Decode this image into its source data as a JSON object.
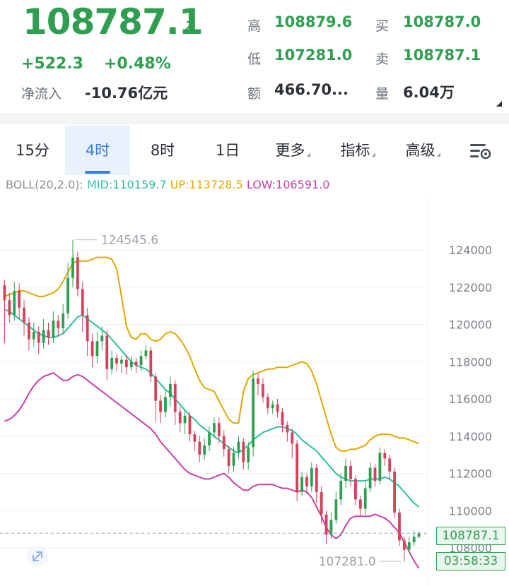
{
  "ticker": {
    "last_price": "108787.1",
    "change": "+522.3",
    "change_pct": "+0.48%",
    "net_flow_label": "净流入",
    "net_flow_value": "-10.76亿元"
  },
  "stats": {
    "high_label": "高",
    "high_value": "108879.6",
    "low_label": "低",
    "low_value": "107281.0",
    "amount_label": "额",
    "amount_value": "466.70...",
    "bid_label": "买",
    "bid_value": "108787.0",
    "ask_label": "卖",
    "ask_value": "108787.1",
    "volume_label": "量",
    "volume_value": "6.04万"
  },
  "tabs": [
    {
      "label": "15分"
    },
    {
      "label": "4时",
      "active": true
    },
    {
      "label": "8时"
    },
    {
      "label": "1日"
    },
    {
      "label": "更多"
    },
    {
      "label": "指标"
    },
    {
      "label": "高级"
    }
  ],
  "indicator": {
    "name": "BOLL(20,2.0):",
    "mid": "MID:110159.7",
    "up": "UP:113728.5",
    "low": "LOW:106591.0"
  },
  "colors": {
    "up_candle": "#2f9e50",
    "down_candle": "#d6405a",
    "mid_line": "#2bbfa0",
    "upper_band": "#e0a800",
    "lower_band": "#c93fa7",
    "active_tab": "#3b7de0"
  },
  "chart_data": {
    "type": "candlestick",
    "y_ticks": [
      "124000",
      "122000",
      "120000",
      "118000",
      "116000",
      "114000",
      "112000",
      "110000",
      "108000"
    ],
    "ylim": [
      107000,
      125500
    ],
    "max_label": "124545.6",
    "min_label": "107281.0",
    "current_price_tag": "108787.1",
    "countdown": "03:58:33",
    "max_value": 124545.6,
    "min_value": 107281.0,
    "current_value": 108787.1,
    "candles": [
      [
        122100,
        121300,
        122400,
        119000
      ],
      [
        121300,
        120500,
        121700,
        120100
      ],
      [
        120500,
        121800,
        122300,
        120200
      ],
      [
        121800,
        120900,
        122200,
        120300
      ],
      [
        120900,
        120100,
        121300,
        119400
      ],
      [
        120100,
        119200,
        120400,
        118600
      ],
      [
        119200,
        119600,
        120100,
        118800
      ],
      [
        119600,
        119000,
        119900,
        118400
      ],
      [
        119000,
        119700,
        120300,
        118700
      ],
      [
        119700,
        119300,
        120100,
        118900
      ],
      [
        119300,
        120200,
        120700,
        119000
      ],
      [
        120200,
        119800,
        120500,
        119300
      ],
      [
        119800,
        120600,
        121100,
        119500
      ],
      [
        120600,
        122500,
        123300,
        120300
      ],
      [
        122500,
        123600,
        124545.6,
        122000
      ],
      [
        123600,
        121900,
        123900,
        121500
      ],
      [
        121900,
        120500,
        122300,
        119600
      ],
      [
        120500,
        119100,
        120900,
        118300
      ],
      [
        119100,
        118300,
        119500,
        117700
      ],
      [
        118300,
        119100,
        119600,
        117900
      ],
      [
        119100,
        119400,
        119900,
        118600
      ],
      [
        119400,
        117600,
        119700,
        117000
      ],
      [
        117600,
        118200,
        118600,
        117300
      ],
      [
        118200,
        117900,
        118400,
        117500
      ],
      [
        117900,
        118100,
        118300,
        117400
      ],
      [
        118100,
        117700,
        118400,
        117300
      ],
      [
        117700,
        118000,
        118300,
        117500
      ],
      [
        118000,
        117800,
        118200,
        117400
      ],
      [
        117800,
        118300,
        118600,
        117500
      ],
      [
        118300,
        118600,
        118900,
        118100
      ],
      [
        118600,
        117200,
        118800,
        116900
      ],
      [
        117200,
        115900,
        117400,
        114800
      ],
      [
        115900,
        115300,
        116200,
        114700
      ],
      [
        115300,
        116100,
        116500,
        115000
      ],
      [
        116100,
        116800,
        117200,
        115600
      ],
      [
        116800,
        115300,
        117000,
        114600
      ],
      [
        115300,
        114700,
        115600,
        114200
      ],
      [
        114700,
        115100,
        115400,
        114100
      ],
      [
        115100,
        114100,
        115300,
        113700
      ],
      [
        114100,
        113700,
        114300,
        113200
      ],
      [
        113700,
        113000,
        114000,
        112600
      ],
      [
        113000,
        113500,
        113900,
        112700
      ],
      [
        113500,
        114200,
        114500,
        113200
      ],
      [
        114200,
        114700,
        115000,
        113900
      ],
      [
        114700,
        114000,
        115000,
        113600
      ],
      [
        114000,
        113300,
        114300,
        112900
      ],
      [
        113300,
        112400,
        113500,
        112000
      ],
      [
        112400,
        113100,
        113400,
        112100
      ],
      [
        113100,
        113700,
        114000,
        112800
      ],
      [
        113700,
        112600,
        113900,
        112200
      ],
      [
        112600,
        113400,
        113700,
        112200
      ],
      [
        113400,
        117100,
        117500,
        112900
      ],
      [
        117100,
        116800,
        117400,
        116200
      ],
      [
        116800,
        116100,
        117100,
        115800
      ],
      [
        116100,
        115500,
        116300,
        115200
      ],
      [
        115500,
        115700,
        115900,
        115200
      ],
      [
        115700,
        115300,
        116000,
        115000
      ],
      [
        115300,
        114600,
        115500,
        114200
      ],
      [
        114600,
        114200,
        114800,
        113700
      ],
      [
        114200,
        113600,
        114400,
        112800
      ],
      [
        113600,
        111000,
        113800,
        110500
      ],
      [
        111000,
        111800,
        112100,
        110800
      ],
      [
        111800,
        111300,
        112000,
        110900
      ],
      [
        111300,
        112300,
        112600,
        111000
      ],
      [
        112300,
        111000,
        112500,
        110400
      ],
      [
        111000,
        109800,
        111300,
        109300
      ],
      [
        109800,
        108700,
        110000,
        108200
      ],
      [
        108700,
        109500,
        109900,
        108500
      ],
      [
        109500,
        110600,
        111000,
        109300
      ],
      [
        110600,
        111600,
        112000,
        110300
      ],
      [
        111600,
        112400,
        112800,
        111200
      ],
      [
        112400,
        111700,
        112700,
        111300
      ],
      [
        111700,
        110600,
        111900,
        110300
      ],
      [
        110600,
        110100,
        110800,
        109700
      ],
      [
        110100,
        111200,
        111500,
        109800
      ],
      [
        111200,
        112300,
        112600,
        111000
      ],
      [
        112300,
        111600,
        112500,
        111300
      ],
      [
        111600,
        113100,
        113400,
        111400
      ],
      [
        113100,
        112800,
        113300,
        112400
      ],
      [
        112800,
        112100,
        113000,
        111700
      ],
      [
        112100,
        109900,
        112300,
        109600
      ],
      [
        109900,
        108400,
        110100,
        108100
      ],
      [
        108400,
        107900,
        108600,
        107281
      ],
      [
        107900,
        108300,
        108600,
        107700
      ],
      [
        108300,
        108600,
        108900,
        108100
      ],
      [
        108600,
        108787.1,
        108900,
        108500
      ]
    ],
    "mid_line": [
      120800,
      120700,
      120500,
      120300,
      120100,
      119900,
      119700,
      119500,
      119400,
      119300,
      119300,
      119400,
      119500,
      119800,
      120100,
      120400,
      120500,
      120300,
      120100,
      119900,
      119700,
      119500,
      119200,
      118900,
      118600,
      118300,
      118000,
      117800,
      117700,
      117600,
      117400,
      117100,
      116800,
      116500,
      116300,
      116000,
      115700,
      115400,
      115100,
      114900,
      114600,
      114400,
      114200,
      114000,
      113800,
      113600,
      113400,
      113200,
      113100,
      113300,
      113500,
      113800,
      114000,
      114200,
      114300,
      114400,
      114500,
      114500,
      114400,
      114300,
      114100,
      113800,
      113600,
      113400,
      113200,
      112900,
      112600,
      112300,
      112000,
      111800,
      111700,
      111600,
      111600,
      111600,
      111600,
      111700,
      111700,
      111700,
      111800,
      111700,
      111500,
      111300,
      111000,
      110700,
      110400,
      110200
    ],
    "upper_band": [
      121500,
      121600,
      121700,
      121800,
      121800,
      121700,
      121600,
      121500,
      121500,
      121600,
      121700,
      121900,
      122300,
      122800,
      123300,
      123400,
      123400,
      123400,
      123500,
      123600,
      123600,
      123600,
      123500,
      123000,
      121500,
      119900,
      119300,
      119200,
      119500,
      119500,
      119200,
      119100,
      119200,
      119500,
      119600,
      119500,
      119200,
      118800,
      118300,
      117600,
      117000,
      116600,
      116500,
      116400,
      115900,
      115400,
      114900,
      114700,
      114700,
      116400,
      117100,
      117300,
      117400,
      117500,
      117600,
      117600,
      117700,
      117700,
      117700,
      117800,
      117900,
      118000,
      117900,
      117500,
      116800,
      115900,
      115000,
      114100,
      113400,
      113200,
      113200,
      113300,
      113300,
      113400,
      113500,
      113800,
      114000,
      114100,
      114100,
      114100,
      114000,
      113900,
      113900,
      113800,
      113700,
      113600
    ],
    "lower_band": [
      114800,
      114900,
      115100,
      115400,
      115800,
      116300,
      116700,
      117000,
      117200,
      117300,
      117400,
      117200,
      117000,
      117000,
      117200,
      117300,
      117200,
      117000,
      116800,
      116600,
      116400,
      116200,
      116000,
      115800,
      115600,
      115400,
      115200,
      115000,
      114800,
      114600,
      114400,
      114100,
      113700,
      113400,
      113100,
      112800,
      112500,
      112200,
      112000,
      111900,
      111800,
      111700,
      111700,
      111800,
      111900,
      112000,
      111800,
      111500,
      111300,
      111100,
      111100,
      111300,
      111400,
      111400,
      111400,
      111400,
      111300,
      111200,
      111200,
      111100,
      111000,
      111100,
      111000,
      110700,
      110200,
      109700,
      109100,
      108700,
      108500,
      108700,
      109200,
      109600,
      109700,
      109700,
      109700,
      109700,
      109800,
      109700,
      109600,
      109400,
      109100,
      108800,
      108300,
      107800,
      107300,
      106900
    ]
  }
}
